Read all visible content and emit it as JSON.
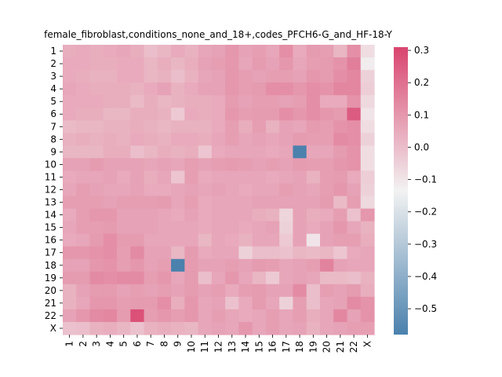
{
  "chart_data": {
    "type": "heatmap",
    "title": "female_fibroblast,conditions_none_and_18+,codes_PFCH6-G_and_HF-18-Y",
    "xlabel": "",
    "ylabel": "",
    "row_labels": [
      "1",
      "2",
      "3",
      "4",
      "5",
      "6",
      "7",
      "8",
      "9",
      "10",
      "11",
      "12",
      "13",
      "14",
      "15",
      "16",
      "17",
      "18",
      "19",
      "20",
      "21",
      "22",
      "X"
    ],
    "col_labels": [
      "1",
      "2",
      "3",
      "4",
      "5",
      "6",
      "7",
      "8",
      "9",
      "10",
      "11",
      "12",
      "13",
      "14",
      "15",
      "16",
      "17",
      "18",
      "19",
      "20",
      "21",
      "22",
      "X"
    ],
    "colorbar": {
      "min": -0.58,
      "max": 0.31,
      "ticks": [
        0.3,
        0.2,
        0.1,
        0.0,
        -0.1,
        -0.2,
        -0.3,
        -0.4,
        -0.5
      ],
      "tick_labels": [
        "0.3",
        "0.2",
        "0.1",
        "0.0",
        "−0.1",
        "−0.2",
        "−0.3",
        "−0.4",
        "−0.5"
      ],
      "colormap": "diverging blue-white-pink",
      "low_color": "#4a81ad",
      "mid_color": "#f2f2f2",
      "high_color": "#d9456f"
    },
    "values": [
      [
        0.04,
        0.05,
        0.04,
        0.05,
        0.06,
        0.04,
        0.0,
        0.02,
        0.05,
        0.03,
        0.06,
        0.07,
        0.1,
        0.07,
        0.08,
        0.06,
        0.12,
        0.05,
        0.09,
        0.08,
        0.02,
        0.12,
        -0.08
      ],
      [
        0.05,
        0.05,
        0.04,
        0.04,
        0.05,
        0.05,
        0.02,
        0.04,
        0.02,
        0.04,
        0.07,
        0.08,
        0.1,
        0.06,
        0.09,
        0.07,
        0.1,
        0.06,
        0.08,
        0.09,
        0.11,
        0.16,
        -0.12
      ],
      [
        0.05,
        0.04,
        0.03,
        0.03,
        0.05,
        0.05,
        0.02,
        0.03,
        0.0,
        0.03,
        0.06,
        0.07,
        0.1,
        0.08,
        0.07,
        0.08,
        0.08,
        0.07,
        0.1,
        0.09,
        0.12,
        0.14,
        -0.05
      ],
      [
        0.06,
        0.05,
        0.04,
        0.04,
        0.04,
        0.03,
        0.05,
        0.07,
        0.03,
        0.05,
        0.07,
        0.07,
        0.1,
        0.08,
        0.09,
        0.12,
        0.12,
        0.1,
        0.12,
        0.11,
        0.14,
        0.14,
        -0.04
      ],
      [
        0.05,
        0.05,
        0.05,
        0.04,
        0.04,
        0.01,
        0.04,
        0.02,
        0.03,
        0.04,
        0.04,
        0.05,
        0.09,
        0.07,
        0.08,
        0.08,
        0.07,
        0.08,
        0.12,
        0.05,
        0.05,
        0.11,
        -0.07
      ],
      [
        0.05,
        0.04,
        0.04,
        0.02,
        0.02,
        0.04,
        0.04,
        0.03,
        -0.03,
        0.05,
        0.04,
        0.05,
        0.1,
        0.08,
        0.09,
        0.09,
        0.12,
        0.1,
        0.12,
        0.1,
        0.09,
        0.25,
        -0.1
      ],
      [
        0.01,
        0.02,
        0.02,
        0.03,
        0.03,
        0.04,
        0.03,
        0.02,
        0.03,
        0.03,
        0.03,
        0.05,
        0.08,
        0.04,
        0.08,
        0.03,
        0.07,
        0.06,
        0.09,
        0.08,
        0.11,
        0.12,
        -0.08
      ],
      [
        0.03,
        0.04,
        0.03,
        0.04,
        0.03,
        0.05,
        0.04,
        0.03,
        0.05,
        0.05,
        0.04,
        0.06,
        0.08,
        0.06,
        0.07,
        0.06,
        0.07,
        0.09,
        0.08,
        0.08,
        0.13,
        0.12,
        -0.05
      ],
      [
        0.02,
        0.02,
        0.02,
        0.04,
        0.04,
        0.0,
        0.02,
        0.04,
        0.03,
        0.04,
        -0.02,
        0.05,
        0.06,
        0.06,
        0.06,
        0.05,
        0.06,
        -0.58,
        0.06,
        0.06,
        0.09,
        0.11,
        -0.08
      ],
      [
        0.07,
        0.07,
        0.09,
        0.07,
        0.07,
        0.07,
        0.06,
        0.07,
        0.06,
        0.08,
        0.07,
        0.08,
        0.09,
        0.08,
        0.07,
        0.08,
        0.07,
        0.09,
        0.08,
        0.08,
        0.1,
        0.11,
        -0.08
      ],
      [
        0.05,
        0.06,
        0.06,
        0.07,
        0.05,
        0.07,
        0.04,
        0.06,
        -0.02,
        0.08,
        0.05,
        0.06,
        0.06,
        0.06,
        0.06,
        0.05,
        0.06,
        0.07,
        0.03,
        0.08,
        0.09,
        0.05,
        -0.04
      ],
      [
        0.06,
        0.08,
        0.07,
        0.06,
        0.06,
        0.07,
        0.05,
        0.05,
        0.06,
        0.07,
        0.06,
        0.07,
        0.06,
        0.05,
        0.06,
        0.06,
        0.08,
        0.07,
        0.06,
        0.08,
        0.1,
        0.07,
        -0.05
      ],
      [
        0.08,
        0.08,
        0.08,
        0.07,
        0.08,
        0.08,
        0.08,
        0.09,
        0.06,
        0.08,
        0.05,
        0.06,
        0.06,
        0.06,
        0.07,
        0.07,
        0.07,
        0.07,
        0.07,
        0.09,
        0.01,
        0.08,
        -0.07
      ],
      [
        0.05,
        0.08,
        0.1,
        0.1,
        0.07,
        0.07,
        0.07,
        0.06,
        0.05,
        0.07,
        0.05,
        0.06,
        0.06,
        0.06,
        0.04,
        0.03,
        -0.06,
        0.07,
        0.04,
        0.05,
        0.08,
        -0.01,
        0.1
      ],
      [
        0.06,
        0.08,
        0.08,
        0.09,
        0.07,
        0.07,
        0.07,
        0.06,
        0.06,
        0.06,
        0.05,
        0.06,
        0.06,
        0.05,
        0.06,
        0.07,
        -0.05,
        0.07,
        0.05,
        0.07,
        0.1,
        0.06,
        0.03
      ],
      [
        0.05,
        0.06,
        0.09,
        0.12,
        0.09,
        0.09,
        0.06,
        0.06,
        0.06,
        0.06,
        0.02,
        0.06,
        0.05,
        0.03,
        0.06,
        0.06,
        -0.03,
        0.07,
        -0.1,
        0.07,
        0.08,
        0.08,
        0.04
      ],
      [
        0.1,
        0.1,
        0.11,
        0.12,
        0.08,
        0.13,
        0.07,
        0.07,
        0.02,
        0.09,
        0.05,
        0.06,
        0.06,
        -0.05,
        0.0,
        0.0,
        -0.01,
        0.02,
        0.01,
        0.02,
        -0.02,
        0.05,
        0.06
      ],
      [
        0.07,
        0.07,
        0.1,
        0.11,
        0.08,
        0.1,
        0.07,
        0.08,
        -0.58,
        0.09,
        0.07,
        0.07,
        0.08,
        0.07,
        0.09,
        0.08,
        0.06,
        0.07,
        0.08,
        0.15,
        0.07,
        0.06,
        0.06
      ],
      [
        0.09,
        0.09,
        0.13,
        0.12,
        0.13,
        0.13,
        0.08,
        0.1,
        0.06,
        0.09,
        0.0,
        0.06,
        0.1,
        0.06,
        0.02,
        -0.03,
        0.06,
        0.07,
        0.06,
        0.01,
        0.01,
        0.0,
        0.03
      ],
      [
        0.03,
        0.07,
        0.09,
        0.09,
        0.07,
        0.08,
        0.07,
        0.08,
        0.07,
        0.09,
        0.07,
        0.08,
        0.05,
        0.08,
        0.09,
        0.07,
        0.07,
        0.13,
        0.0,
        0.08,
        0.07,
        0.09,
        0.04
      ],
      [
        0.03,
        0.06,
        0.1,
        0.1,
        0.08,
        0.09,
        0.09,
        0.12,
        0.04,
        0.1,
        0.06,
        0.07,
        -0.01,
        0.05,
        0.09,
        0.06,
        -0.05,
        0.08,
        0.0,
        0.06,
        0.07,
        0.13,
        0.11
      ],
      [
        0.07,
        0.1,
        0.13,
        0.14,
        0.09,
        0.28,
        0.08,
        0.1,
        0.08,
        0.1,
        0.06,
        0.08,
        0.06,
        0.05,
        0.06,
        0.08,
        0.06,
        0.08,
        0.04,
        0.06,
        0.14,
        0.07,
        0.11
      ],
      [
        -0.01,
        0.0,
        0.03,
        0.04,
        0.02,
        -0.01,
        0.03,
        0.04,
        0.03,
        0.02,
        0.06,
        0.07,
        0.06,
        0.1,
        0.06,
        0.08,
        0.06,
        0.07,
        0.03,
        0.06,
        0.07,
        0.08,
        0.08
      ]
    ]
  }
}
